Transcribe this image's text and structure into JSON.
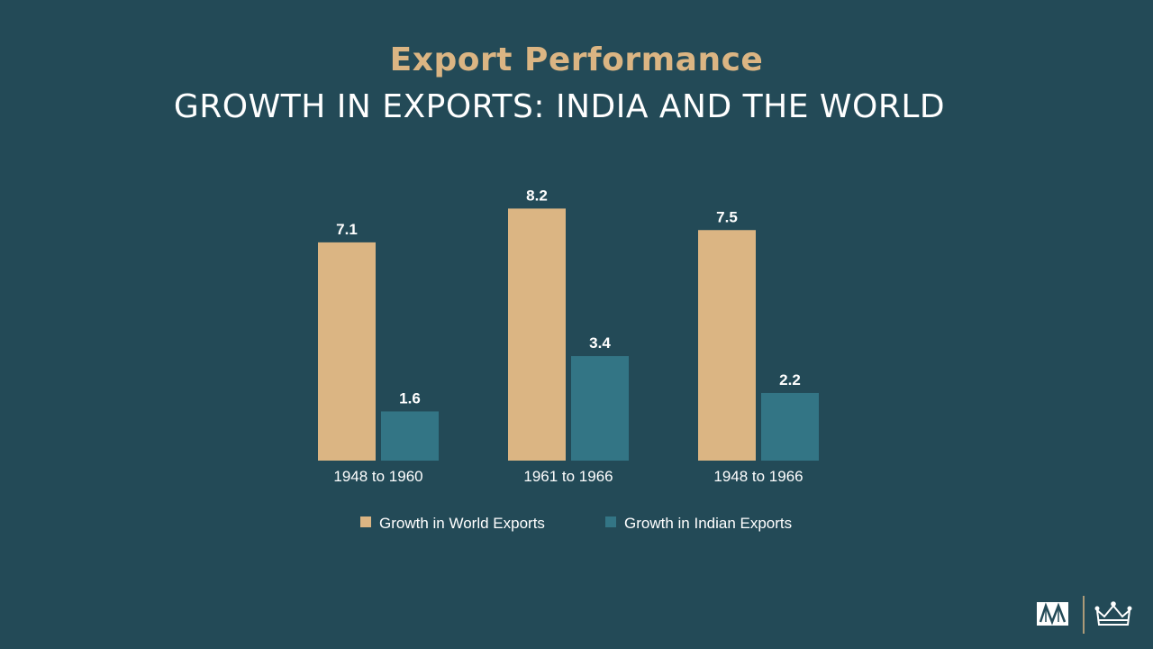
{
  "title": "Export Performance",
  "subtitle": "GROWTH IN EXPORTS: INDIA AND THE WORLD",
  "colors": {
    "background": "#234a57",
    "world": "#dbb583",
    "india": "#337585",
    "title": "#dbb583",
    "text": "#ffffff"
  },
  "chart_data": {
    "type": "bar",
    "title": "",
    "xlabel": "",
    "ylabel": "",
    "categories": [
      "1948 to 1960",
      "1961 to 1966",
      "1948 to 1966"
    ],
    "series": [
      {
        "name": "Growth in World Exports",
        "values": [
          7.1,
          8.2,
          7.5
        ]
      },
      {
        "name": "Growth in Indian Exports",
        "values": [
          1.6,
          3.4,
          2.2
        ]
      }
    ],
    "ylim": [
      0,
      9
    ],
    "grid": false,
    "legend_position": "bottom",
    "data_labels": true
  }
}
